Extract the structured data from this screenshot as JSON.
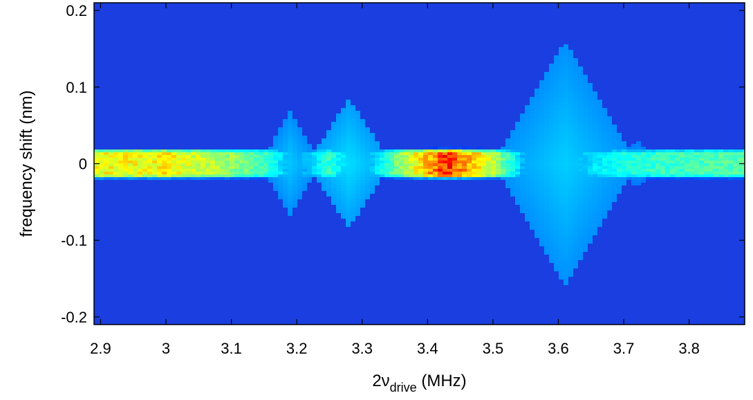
{
  "chart_data": {
    "type": "heatmap",
    "title": "",
    "xlabel": "2ν",
    "xlabel_subscript": "drive",
    "xlabel_unit": " (MHz)",
    "ylabel": "frequency shift (nm)",
    "xlim": [
      2.89,
      3.885
    ],
    "ylim": [
      -0.21,
      0.21
    ],
    "x_ticks": [
      2.9,
      3.0,
      3.1,
      3.2,
      3.3,
      3.4,
      3.5,
      3.6,
      3.7,
      3.8
    ],
    "x_tick_labels": [
      "2.9",
      "3",
      "3.1",
      "3.2",
      "3.3",
      "3.4",
      "3.5",
      "3.6",
      "3.7",
      "3.8"
    ],
    "y_ticks": [
      -0.2,
      -0.1,
      0.0,
      0.1,
      0.2
    ],
    "y_tick_labels": [
      "-0.2",
      "-0.1",
      "0",
      "0.1",
      "0.2"
    ],
    "colormap": "jet",
    "background_color": "#1a3ee0",
    "grid": false,
    "band_center": 0.0,
    "band_half_width": 0.015,
    "band_intensity_profile": {
      "x": [
        2.9,
        3.0,
        3.1,
        3.15,
        3.2,
        3.25,
        3.3,
        3.35,
        3.4,
        3.43,
        3.45,
        3.5,
        3.55,
        3.6,
        3.65,
        3.7,
        3.75,
        3.8,
        3.88
      ],
      "level": [
        0.62,
        0.64,
        0.5,
        0.4,
        0.18,
        0.38,
        0.15,
        0.45,
        0.72,
        0.9,
        0.78,
        0.55,
        0.2,
        0.12,
        0.28,
        0.35,
        0.38,
        0.4,
        0.42
      ]
    },
    "lobes": [
      {
        "center_x": 3.19,
        "half_width_x": 0.045,
        "half_height_y": 0.07,
        "level": 0.25
      },
      {
        "center_x": 3.28,
        "half_width_x": 0.065,
        "half_height_y": 0.085,
        "level": 0.28
      },
      {
        "center_x": 3.61,
        "half_width_x": 0.11,
        "half_height_y": 0.16,
        "level": 0.26
      },
      {
        "center_x": 3.72,
        "half_width_x": 0.045,
        "half_height_y": 0.03,
        "level": 0.22
      }
    ]
  }
}
